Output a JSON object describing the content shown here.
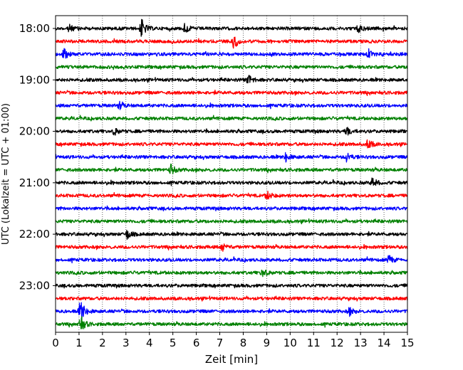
{
  "chart_data": {
    "type": "line",
    "xlabel": "Zeit  [min]",
    "ylabel": "UTC (Lokalzeit = UTC + 01:00)",
    "xlim": [
      0,
      15
    ],
    "x_ticks": [
      "0",
      "1",
      "2",
      "3",
      "4",
      "5",
      "6",
      "7",
      "8",
      "9",
      "10",
      "11",
      "12",
      "13",
      "14",
      "15"
    ],
    "y_ticks": [
      "18:00",
      "19:00",
      "20:00",
      "21:00",
      "22:00",
      "23:00"
    ],
    "grid": "vertical dotted lines at each minute",
    "trace_interval_min": 15,
    "trace_start": "18:00",
    "trace_count": 24,
    "colors": [
      "#000000",
      "#ff0000",
      "#0000ff",
      "#008000"
    ],
    "events": [
      {
        "trace": 0,
        "t": 3.65,
        "amp": 1.0
      },
      {
        "trace": 0,
        "t": 0.55,
        "amp": 0.4
      },
      {
        "trace": 0,
        "t": 5.5,
        "amp": 0.45
      },
      {
        "trace": 0,
        "t": 12.9,
        "amp": 0.4
      },
      {
        "trace": 1,
        "t": 7.6,
        "amp": 0.75
      },
      {
        "trace": 2,
        "t": 0.35,
        "amp": 0.55
      },
      {
        "trace": 2,
        "t": 13.3,
        "amp": 0.4
      },
      {
        "trace": 4,
        "t": 8.2,
        "amp": 0.55
      },
      {
        "trace": 6,
        "t": 2.7,
        "amp": 0.35
      },
      {
        "trace": 8,
        "t": 2.5,
        "amp": 0.35
      },
      {
        "trace": 8,
        "t": 12.4,
        "amp": 0.45
      },
      {
        "trace": 9,
        "t": 13.3,
        "amp": 0.5
      },
      {
        "trace": 10,
        "t": 9.8,
        "amp": 0.45
      },
      {
        "trace": 10,
        "t": 12.4,
        "amp": 0.45
      },
      {
        "trace": 11,
        "t": 4.9,
        "amp": 0.5
      },
      {
        "trace": 12,
        "t": 13.5,
        "amp": 0.5
      },
      {
        "trace": 13,
        "t": 9.0,
        "amp": 0.45
      },
      {
        "trace": 16,
        "t": 3.05,
        "amp": 0.45
      },
      {
        "trace": 17,
        "t": 7.1,
        "amp": 0.45
      },
      {
        "trace": 18,
        "t": 14.2,
        "amp": 0.45
      },
      {
        "trace": 19,
        "t": 8.8,
        "amp": 0.45
      },
      {
        "trace": 22,
        "t": 1.05,
        "amp": 1.2
      },
      {
        "trace": 22,
        "t": 12.5,
        "amp": 0.4
      },
      {
        "trace": 23,
        "t": 1.05,
        "amp": 0.9
      }
    ]
  }
}
